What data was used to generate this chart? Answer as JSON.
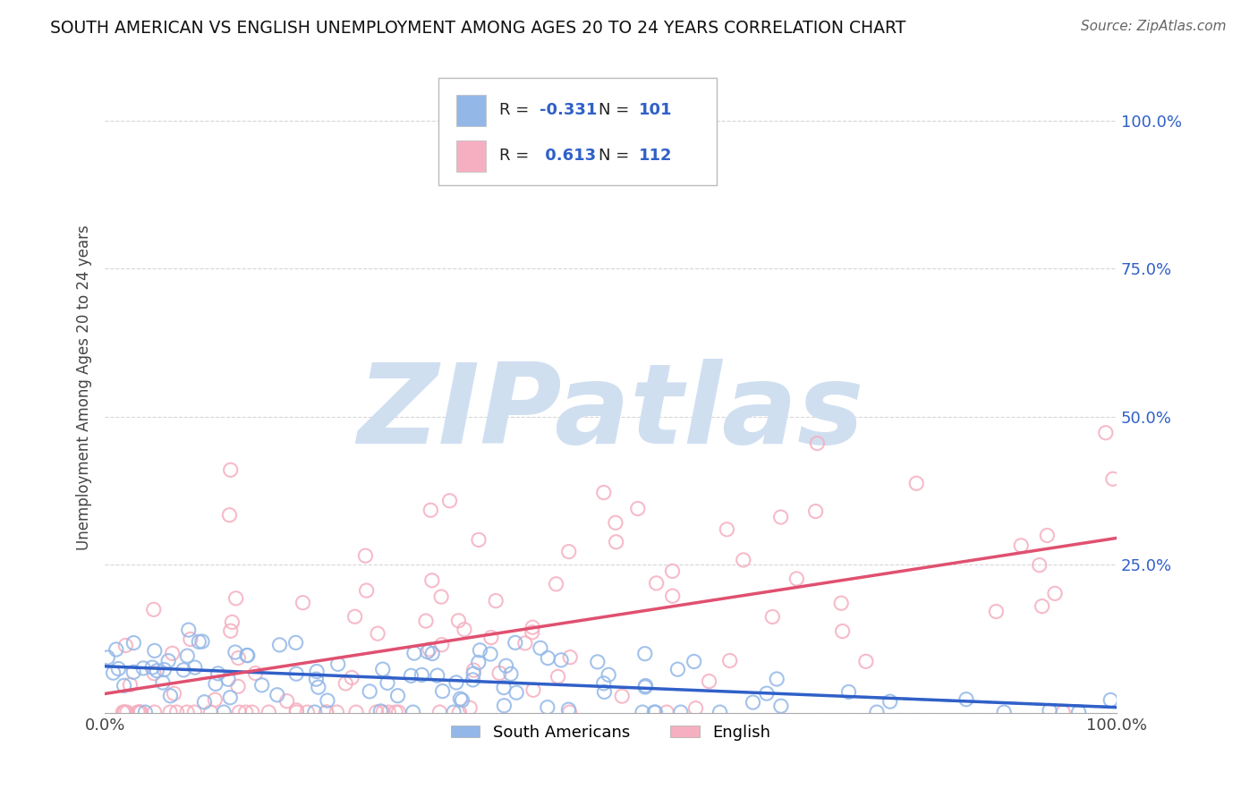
{
  "title": "SOUTH AMERICAN VS ENGLISH UNEMPLOYMENT AMONG AGES 20 TO 24 YEARS CORRELATION CHART",
  "source": "Source: ZipAtlas.com",
  "ylabel": "Unemployment Among Ages 20 to 24 years",
  "x_tick_labels": [
    "0.0%",
    "100.0%"
  ],
  "y_tick_labels": [
    "25.0%",
    "50.0%",
    "75.0%",
    "100.0%"
  ],
  "y_tick_vals": [
    0.25,
    0.5,
    0.75,
    1.0
  ],
  "legend_entries": [
    "South Americans",
    "English"
  ],
  "blue_color": "#93b8e8",
  "pink_color": "#f5afc0",
  "blue_line_color": "#3060c8",
  "pink_line_color": "#e05070",
  "legend_text_color": "#3060c8",
  "R_blue": -0.331,
  "N_blue": 101,
  "R_pink": 0.613,
  "N_pink": 112,
  "background_color": "#ffffff",
  "grid_color": "#cccccc",
  "watermark_text": "ZIPatlas",
  "watermark_color": "#d0dff0",
  "xlim": [
    0.0,
    1.0
  ],
  "ylim": [
    0.0,
    1.1
  ]
}
